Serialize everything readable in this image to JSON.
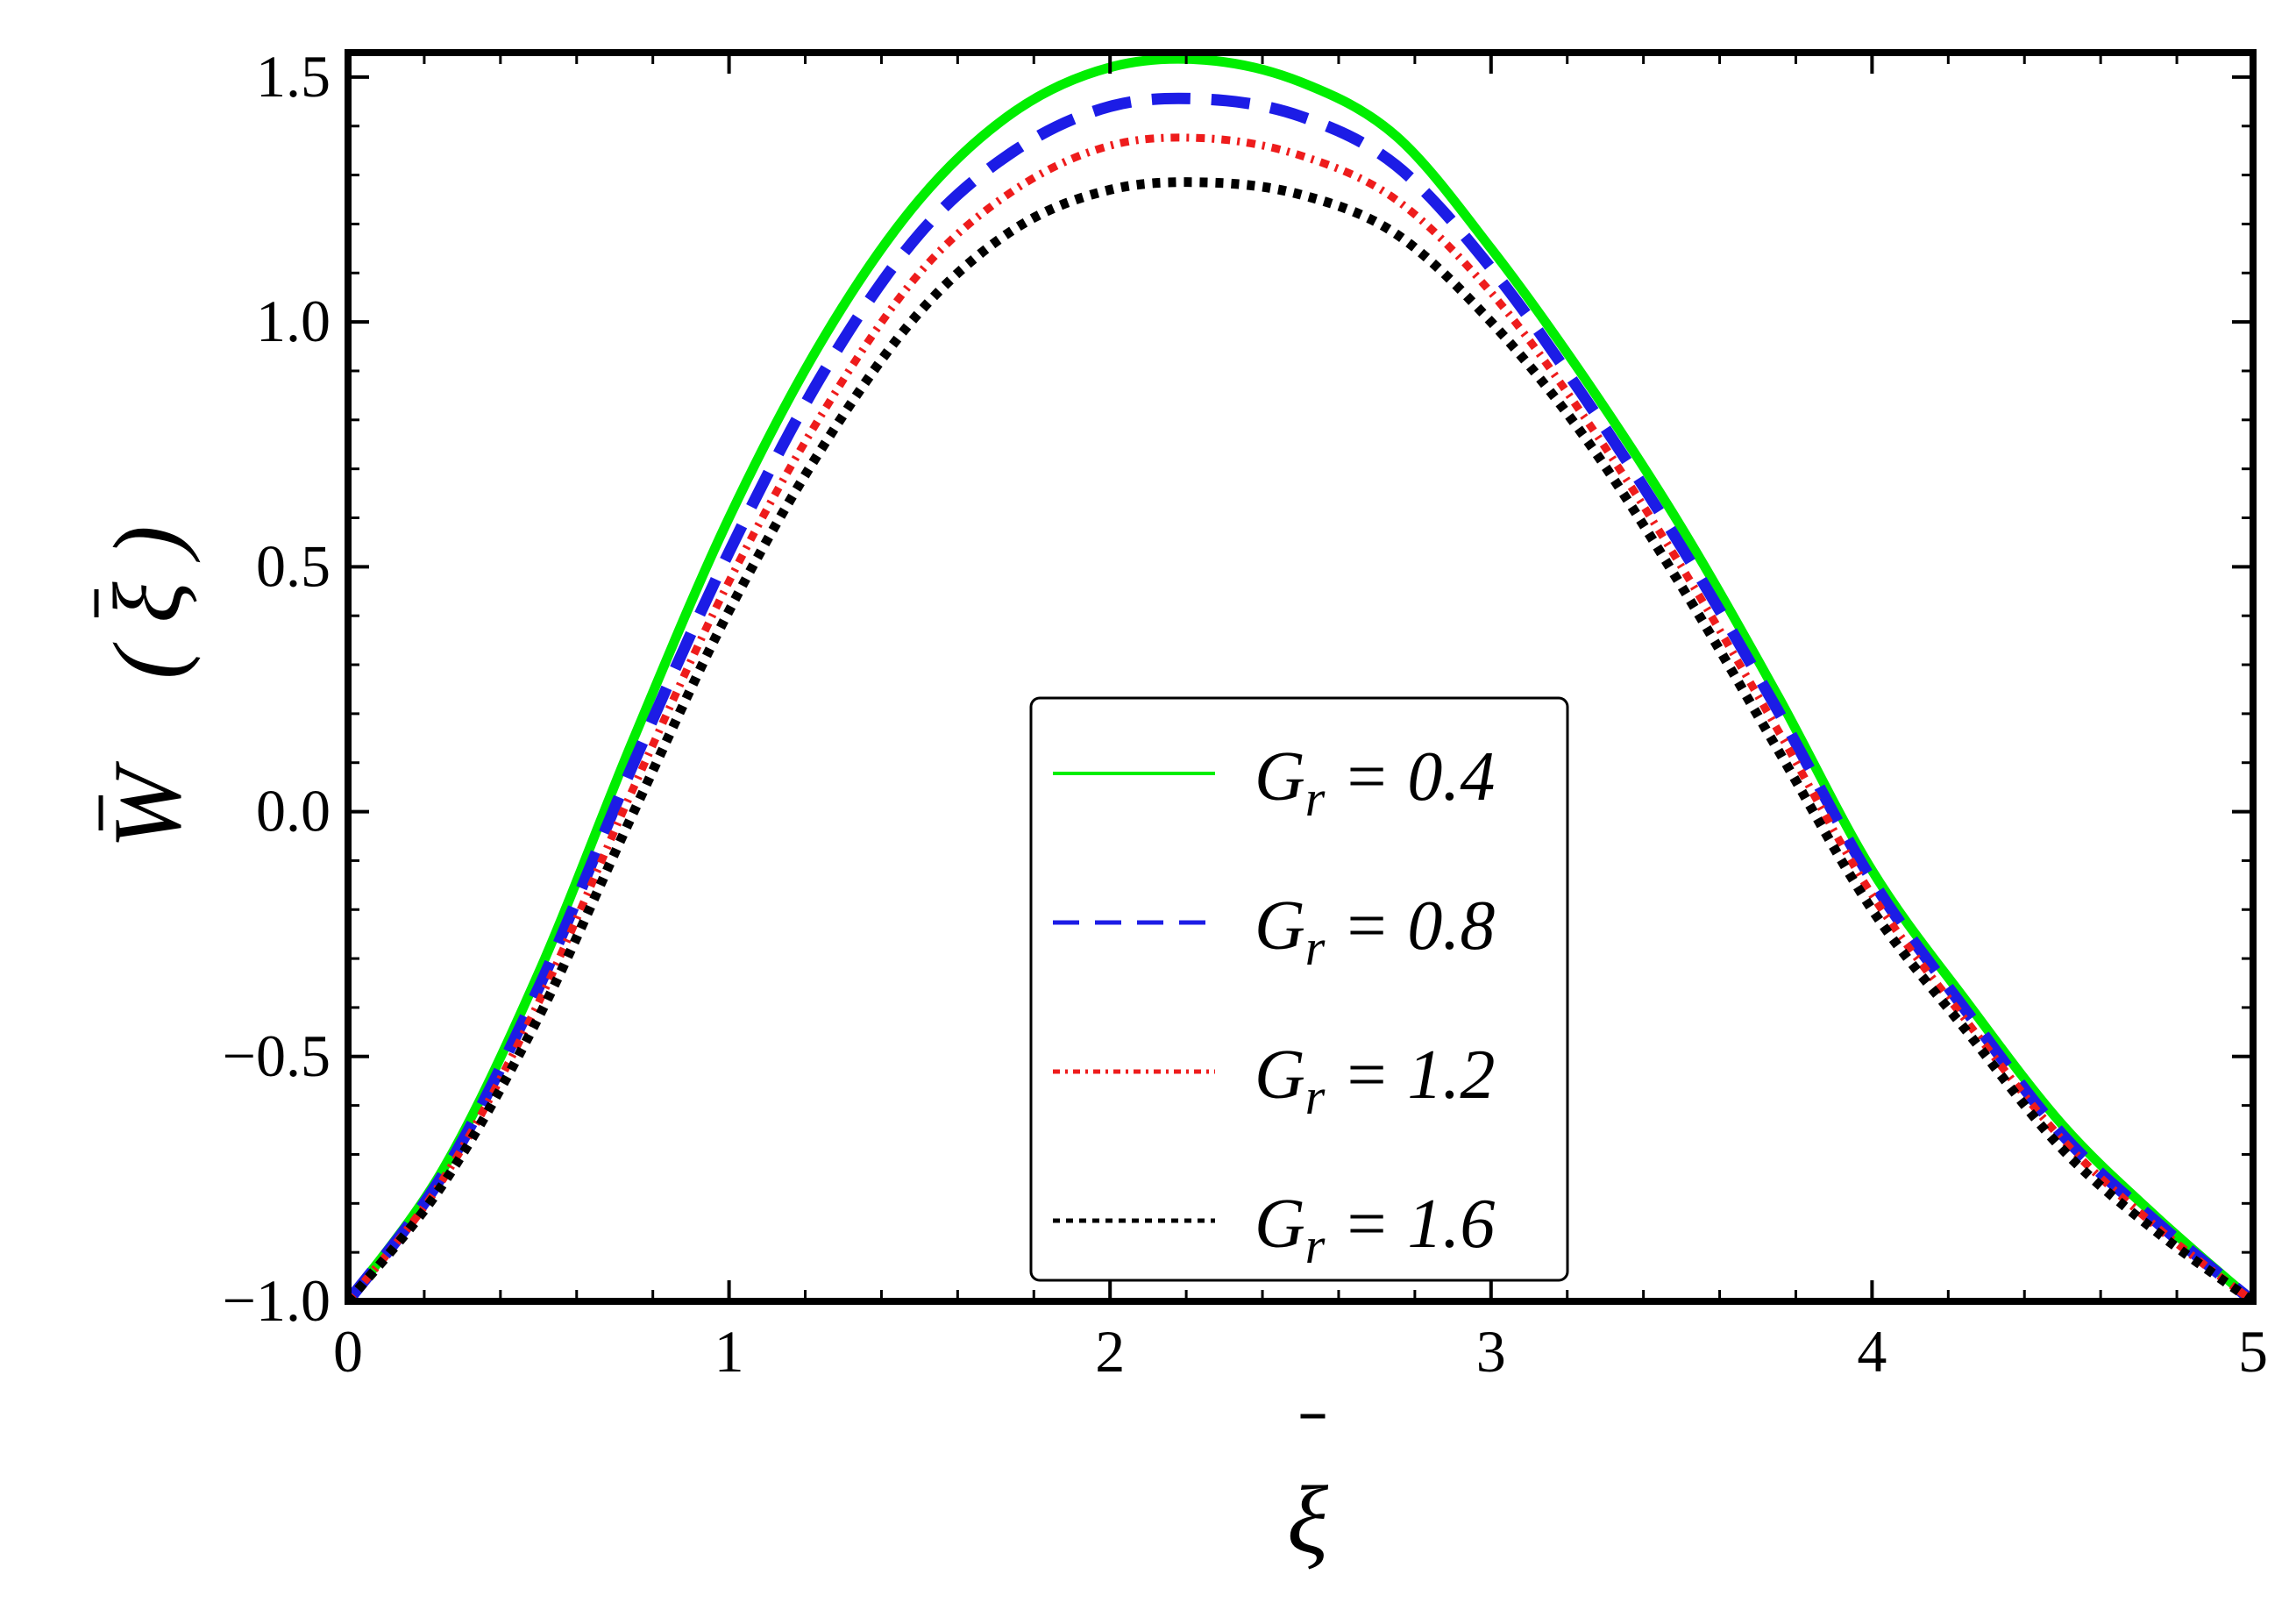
{
  "chart_data": {
    "type": "line",
    "title": "",
    "xlabel": "ξ",
    "ylabel": "W",
    "ylabel_arg": "( ξ )",
    "xlim": [
      0,
      5
    ],
    "ylim": [
      -1.0,
      1.55
    ],
    "xticks": [
      0,
      1,
      2,
      3,
      4,
      5
    ],
    "xtick_labels": [
      "0",
      "1",
      "2",
      "3",
      "4",
      "5"
    ],
    "yticks": [
      -1.0,
      -0.5,
      0.0,
      0.5,
      1.0,
      1.5
    ],
    "ytick_labels": [
      "−1.0",
      "−0.5",
      "0.0",
      "0.5",
      "1.0",
      "1.5"
    ],
    "grid": false,
    "legend_position": "center-bottom",
    "x": [
      0,
      0.25,
      0.5,
      0.75,
      1.0,
      1.25,
      1.5,
      1.75,
      2.0,
      2.25,
      2.5,
      2.75,
      3.0,
      3.25,
      3.5,
      3.75,
      4.0,
      4.25,
      4.5,
      4.75,
      5.0
    ],
    "series": [
      {
        "name": "G_r = 0.4",
        "legend_main": "G",
        "legend_sub": "r",
        "legend_value": " = 0.4",
        "color": "#00ee00",
        "style": "solid",
        "values": [
          -1.0,
          -0.73,
          -0.33,
          0.15,
          0.6,
          0.97,
          1.25,
          1.43,
          1.52,
          1.535,
          1.49,
          1.38,
          1.15,
          0.88,
          0.58,
          0.24,
          -0.12,
          -0.39,
          -0.64,
          -0.83,
          -1.0
        ]
      },
      {
        "name": "G_r = 0.8",
        "legend_main": "G",
        "legend_sub": "r",
        "legend_value": " = 0.8",
        "color": "#1c1ce6",
        "style": "dashed",
        "values": [
          -1.0,
          -0.74,
          -0.36,
          0.1,
          0.53,
          0.9,
          1.18,
          1.35,
          1.44,
          1.455,
          1.42,
          1.32,
          1.11,
          0.84,
          0.54,
          0.21,
          -0.14,
          -0.41,
          -0.66,
          -0.84,
          -1.0
        ]
      },
      {
        "name": "G_r = 1.2",
        "legend_main": "G",
        "legend_sub": "r",
        "legend_value": " = 1.2",
        "color": "#ee1c1c",
        "style": "dashdot",
        "values": [
          -1.0,
          -0.75,
          -0.39,
          0.05,
          0.47,
          0.82,
          1.1,
          1.27,
          1.36,
          1.375,
          1.34,
          1.25,
          1.06,
          0.8,
          0.5,
          0.17,
          -0.17,
          -0.43,
          -0.67,
          -0.85,
          -1.0
        ]
      },
      {
        "name": "G_r = 1.6",
        "legend_main": "G",
        "legend_sub": "r",
        "legend_value": " = 1.6",
        "color": "#000000",
        "style": "dotted",
        "values": [
          -1.0,
          -0.76,
          -0.42,
          0.0,
          0.41,
          0.75,
          1.02,
          1.19,
          1.27,
          1.285,
          1.26,
          1.18,
          1.0,
          0.76,
          0.46,
          0.13,
          -0.2,
          -0.45,
          -0.69,
          -0.86,
          -1.0
        ]
      }
    ]
  }
}
